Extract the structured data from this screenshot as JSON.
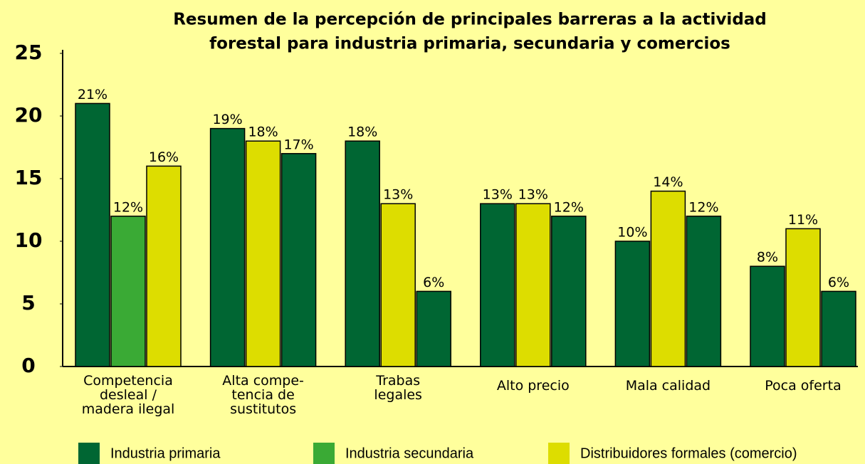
{
  "chart_data": {
    "type": "bar",
    "title": [
      "Resumen de la percepción de principales barreras a la actividad",
      "forestal para industria primaria, secundaria y comercios"
    ],
    "categories": [
      "Competencia\ndesleal /\nmadera ilegal",
      "Alta compe-\ntencia de\nsustitutos",
      "Trabas\nlegales",
      "Alto precio",
      "Mala calidad",
      "Poca oferta"
    ],
    "series": [
      {
        "name": "Industria primaria",
        "color": "#006633",
        "values": [
          21,
          19,
          18,
          13,
          10,
          8
        ],
        "value_labels": [
          "21%",
          "19%",
          "18%",
          "13%",
          "10%",
          "8%"
        ],
        "colors": [
          "#006633",
          "#006633",
          "#006633",
          "#006633",
          "#006633",
          "#006633"
        ]
      },
      {
        "name": "Industria secundaria",
        "color": "#3aaa35",
        "values": [
          12,
          18,
          13,
          13,
          14,
          11
        ],
        "value_labels": [
          "12%",
          "18%",
          "13%",
          "13%",
          "14%",
          "11%"
        ],
        "colors": [
          "#3aaa35",
          "#dddd00",
          "#dddd00",
          "#dddd00",
          "#dddd00",
          "#dddd00"
        ]
      },
      {
        "name": "Distribuidores formales (comercio)",
        "color": "#dddd00",
        "values": [
          16,
          17,
          6,
          12,
          12,
          6
        ],
        "value_labels": [
          "16%",
          "17%",
          "6%",
          "12%",
          "12%",
          "6%"
        ],
        "colors": [
          "#dddd00",
          "#006633",
          "#006633",
          "#006633",
          "#006633",
          "#006633"
        ]
      }
    ],
    "ylim": [
      0,
      25
    ],
    "yticks": [
      0,
      5,
      10,
      15,
      20,
      25
    ],
    "grid": false
  }
}
